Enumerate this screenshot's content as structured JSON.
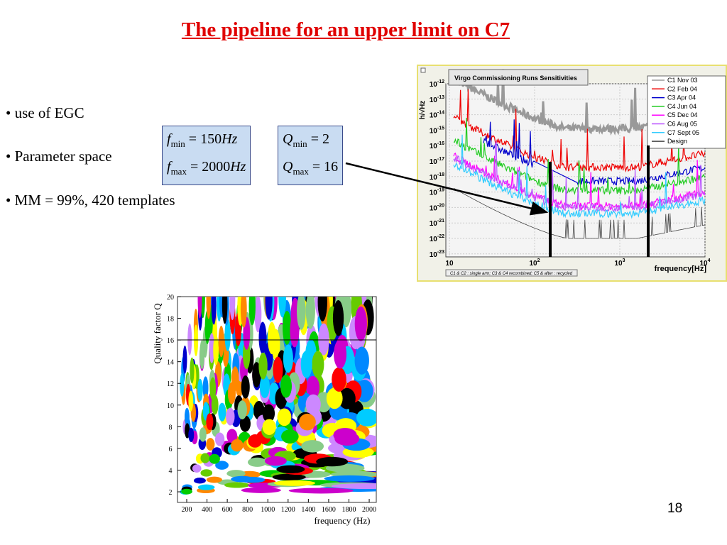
{
  "title": "The pipeline for an upper limit on C7",
  "bullets": [
    "• use of EGC",
    "• Parameter space",
    "• MM = 99%, 420 templates"
  ],
  "formulas": [
    [
      {
        "symbol": "f",
        "sub": "min",
        "eq": "=",
        "value": "150",
        "unit": "Hz"
      },
      {
        "symbol": "f",
        "sub": "max",
        "eq": "=",
        "value": "2000",
        "unit": "Hz"
      }
    ],
    [
      {
        "symbol": "Q",
        "sub": "min",
        "eq": "=",
        "value": "2",
        "unit": ""
      },
      {
        "symbol": "Q",
        "sub": "max",
        "eq": "=",
        "value": "16",
        "unit": ""
      }
    ]
  ],
  "sensitivity_plot": {
    "title": "Virgo Commissioning Runs Sensitivities",
    "y_label": "h/√Hz",
    "x_label": "frequency[Hz]",
    "legend": [
      "C1 Nov 03",
      "C2 Feb 04",
      "C3 Apr 04",
      "C4 Jun 04",
      "C5 Dec 04",
      "C6 Aug 05",
      "C7 Sept 05",
      "Design"
    ],
    "yticks": [
      {
        "base": "10",
        "exp": "-12"
      },
      {
        "base": "10",
        "exp": "-13"
      },
      {
        "base": "10",
        "exp": "-14"
      },
      {
        "base": "10",
        "exp": "-15"
      },
      {
        "base": "10",
        "exp": "-16"
      },
      {
        "base": "10",
        "exp": "-17"
      },
      {
        "base": "10",
        "exp": "-18"
      },
      {
        "base": "10",
        "exp": "-19"
      },
      {
        "base": "10",
        "exp": "-20"
      },
      {
        "base": "10",
        "exp": "-21"
      },
      {
        "base": "10",
        "exp": "-22"
      },
      {
        "base": "10",
        "exp": "-23"
      }
    ],
    "xticks": [
      {
        "base": "10",
        "exp": ""
      },
      {
        "base": "10",
        "exp": "2"
      },
      {
        "base": "10",
        "exp": "3"
      },
      {
        "base": "10",
        "exp": "4"
      }
    ],
    "footnote": "C1 & C2 : single arm; C3 & C4 recombined; C5 & after : recycled"
  },
  "template_plot": {
    "y_label": "Quality factor Q",
    "x_label": "frequency (Hz)",
    "yticks": [
      "20",
      "18",
      "16",
      "14",
      "12",
      "10",
      "8",
      "6",
      "4",
      "2"
    ],
    "xticks": [
      "200",
      "400",
      "600",
      "800",
      "1000",
      "1200",
      "1400",
      "1600",
      "1800",
      "2000"
    ]
  },
  "page_number": "18"
}
